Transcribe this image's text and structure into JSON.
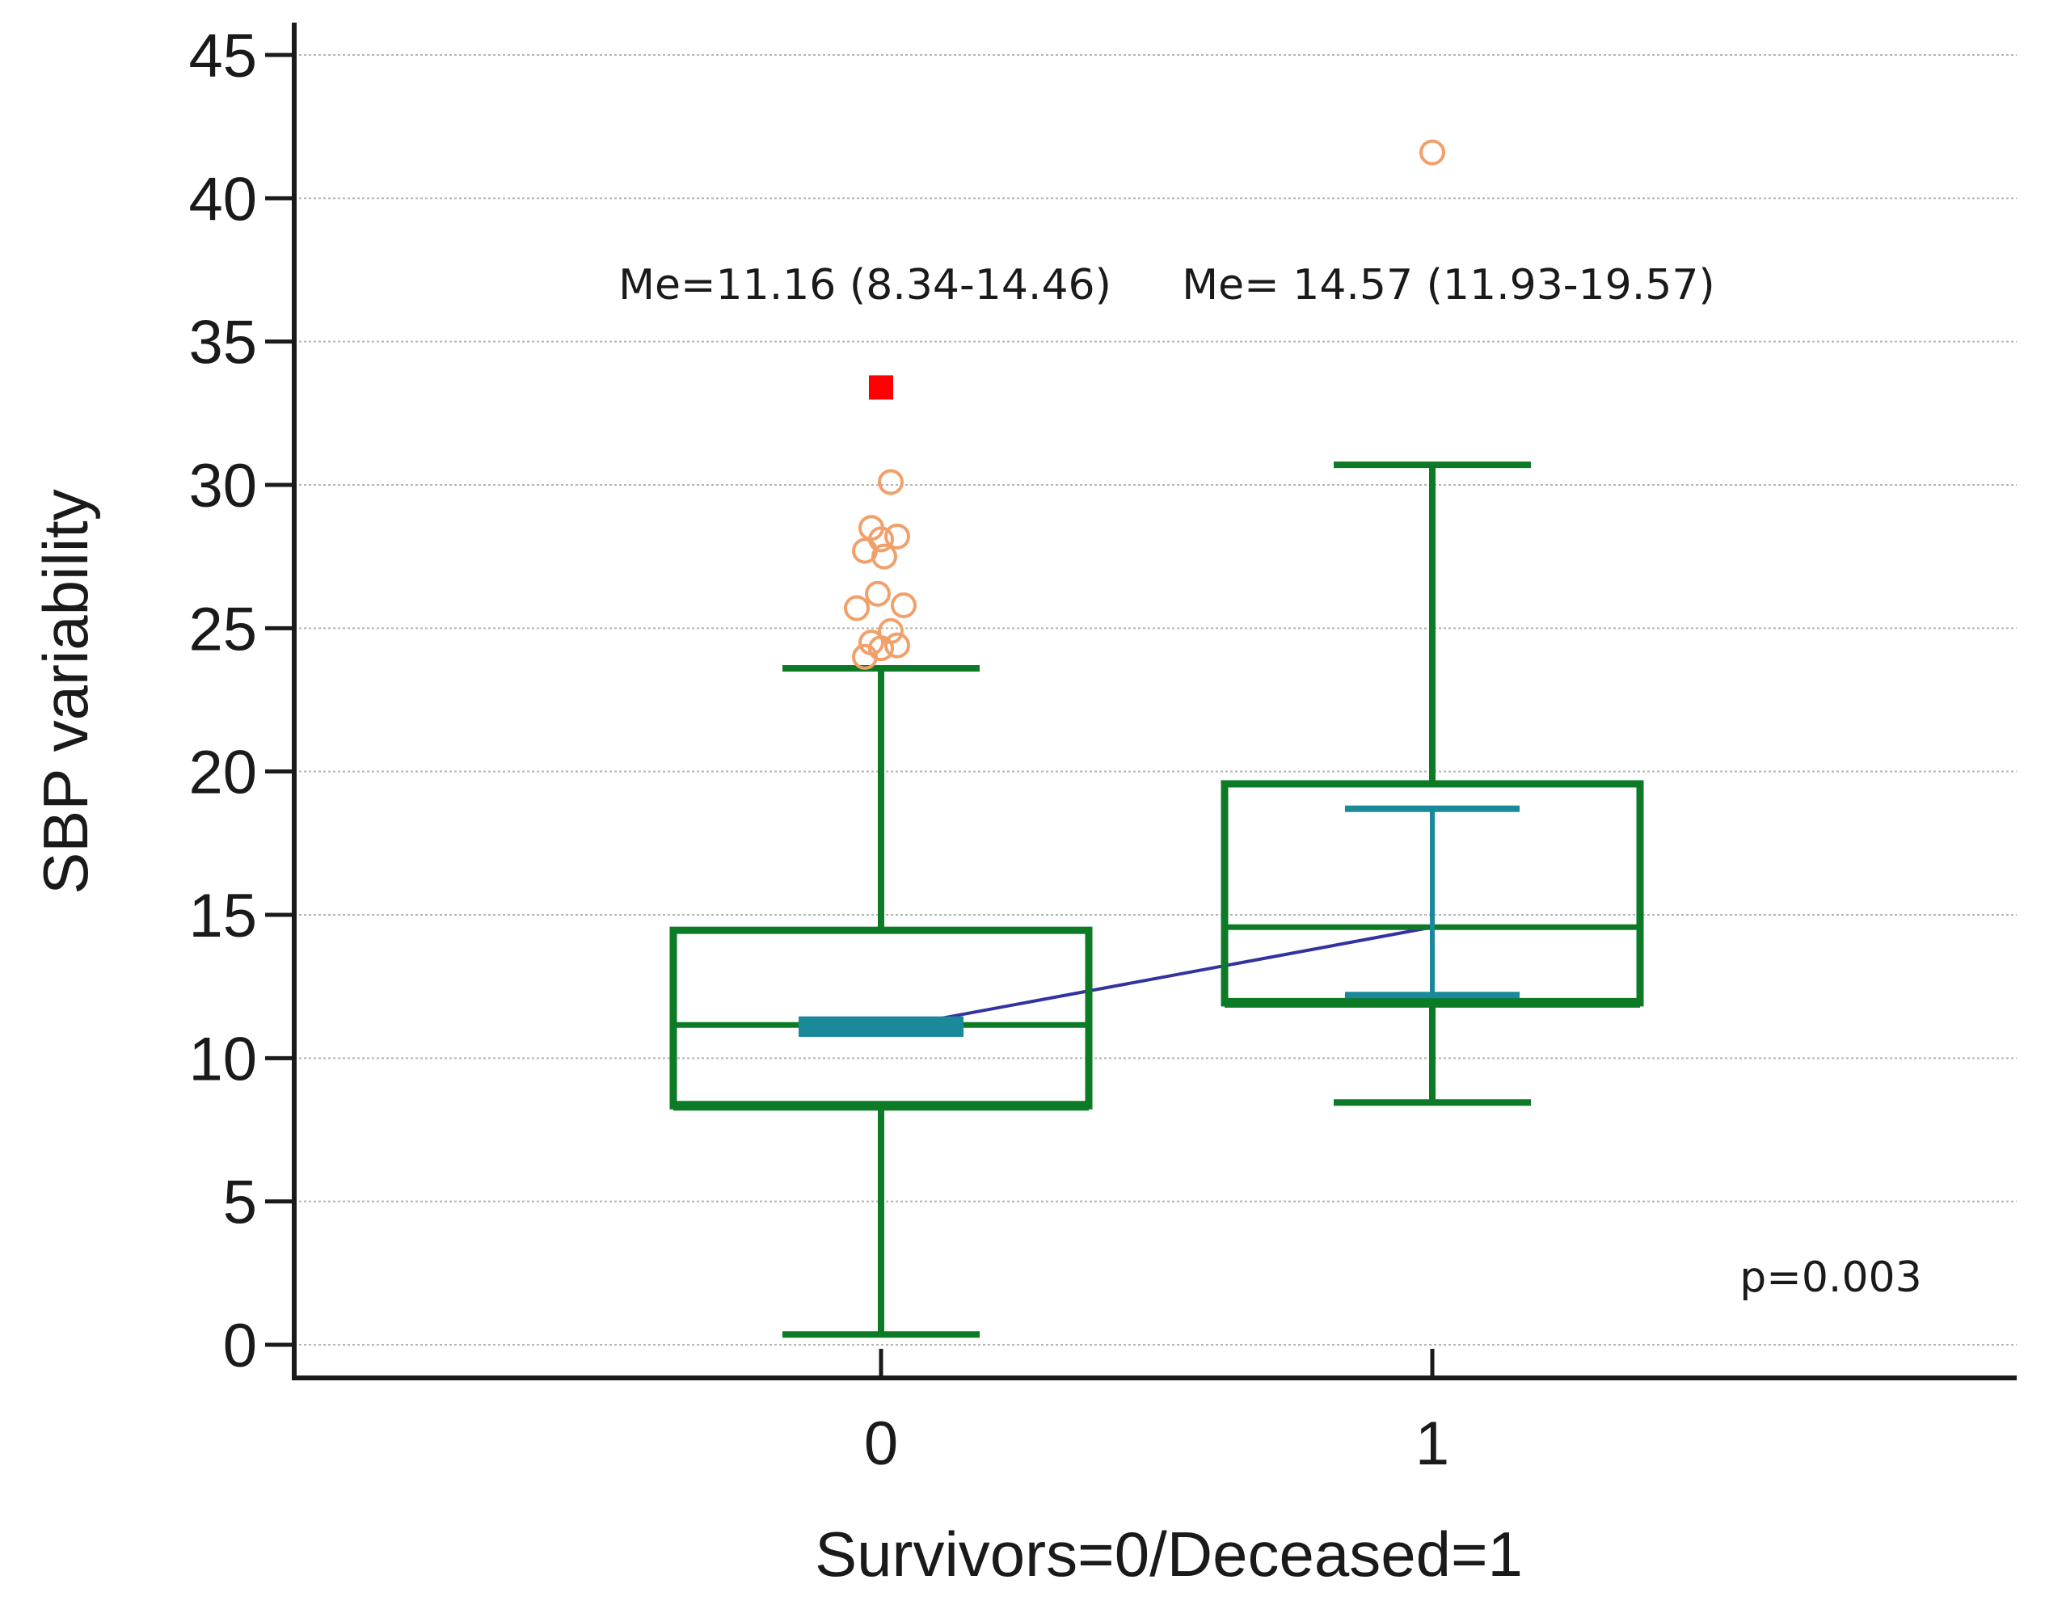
{
  "chart_data": {
    "type": "box",
    "xlabel": "Survivors=0/Deceased=1",
    "ylabel": "SBP variability",
    "ylim": [
      0,
      45
    ],
    "yticks": [
      0,
      5,
      10,
      15,
      20,
      25,
      30,
      35,
      40,
      45
    ],
    "grid": true,
    "categories": [
      "0",
      "1"
    ],
    "groups": [
      {
        "category": "0",
        "whisker_low": 0.36,
        "q1": 8.34,
        "median": 11.16,
        "q3": 14.46,
        "whisker_high": 23.6,
        "mean": 11.0,
        "mean_ci": [
          10.8,
          11.4
        ],
        "outliers": [
          24.0,
          24.3,
          24.4,
          24.5,
          24.9,
          25.7,
          25.8,
          26.2,
          27.5,
          27.7,
          28.1,
          28.2,
          28.5,
          30.1
        ],
        "far_outliers": [
          33.4
        ],
        "annotation": "Me=11.16 (8.34-14.46)"
      },
      {
        "category": "1",
        "whisker_low": 8.45,
        "q1": 11.93,
        "median": 14.57,
        "q3": 19.57,
        "whisker_high": 30.7,
        "mean": 14.57,
        "mean_ci": [
          12.2,
          18.7
        ],
        "outliers": [
          41.6
        ],
        "far_outliers": [],
        "annotation": "Me= 14.57 (11.93-19.57)"
      }
    ],
    "p_value_label": "p=0.003",
    "colors": {
      "box": "#0d7a25",
      "mean_ci": "#1a8a9a",
      "mean_line": "#3333a0",
      "outlier": "#f2a06a",
      "far_outlier": "#ff0000"
    }
  }
}
